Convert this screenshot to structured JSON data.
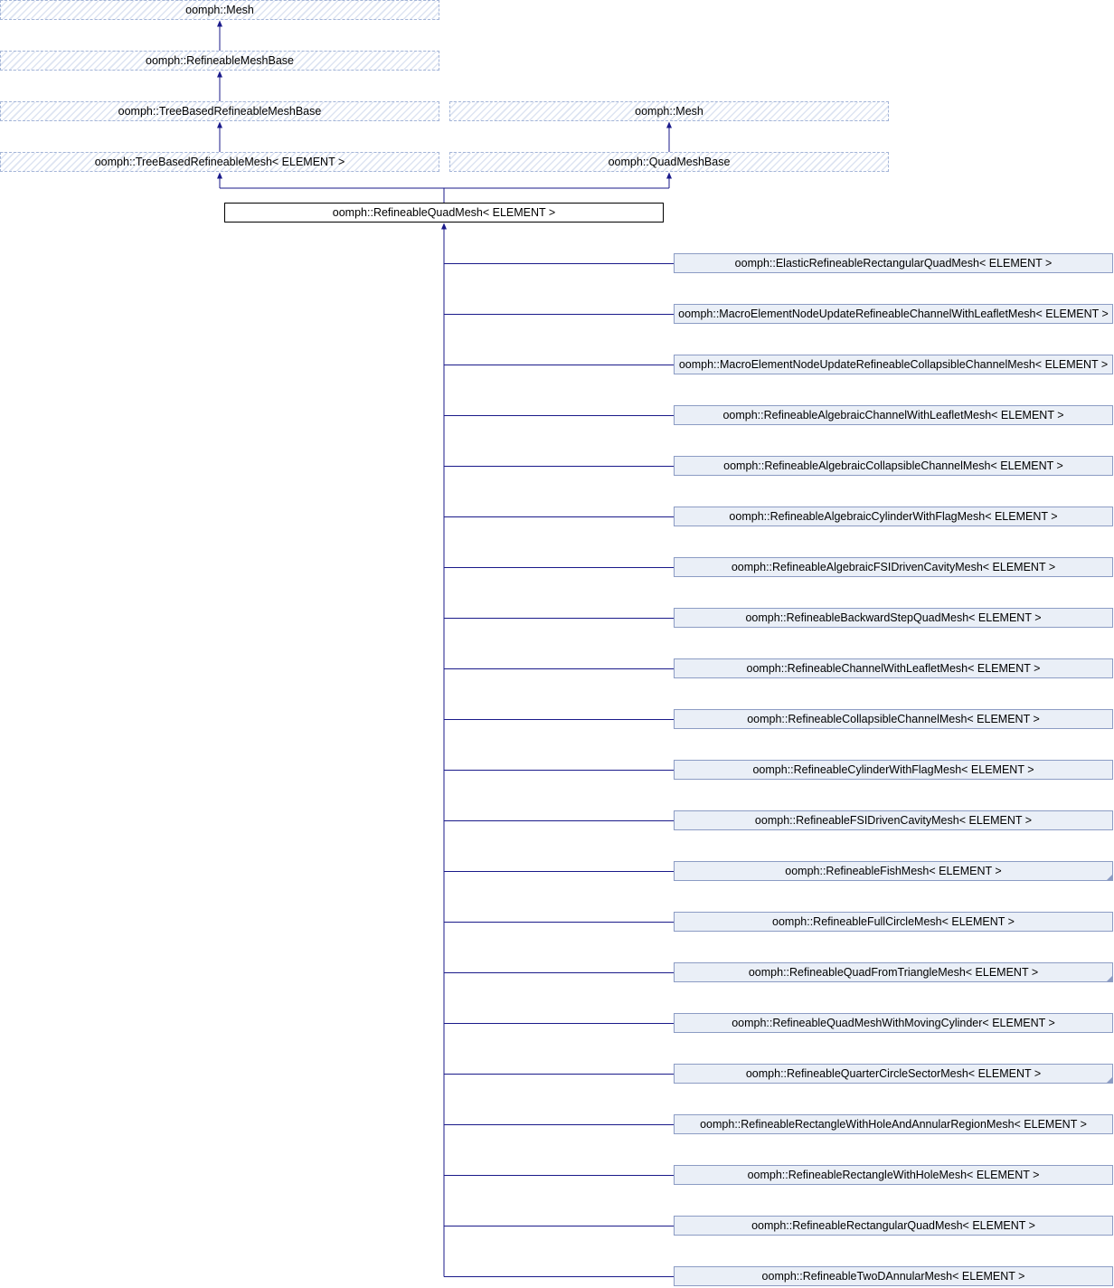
{
  "colors": {
    "edge": "#1a1a8a",
    "hidden_border": "#a3b4d7",
    "derived_border": "#8c9cc4",
    "derived_fill": "#eaeff7"
  },
  "bases": [
    {
      "id": "mesh",
      "label": "oomph::Mesh",
      "kind": "hidden"
    },
    {
      "id": "refineable-mesh-base",
      "label": "oomph::RefineableMeshBase",
      "kind": "hidden"
    },
    {
      "id": "tree-based-refineable-mesh-base",
      "label": "oomph::TreeBasedRefineableMeshBase",
      "kind": "hidden"
    },
    {
      "id": "mesh-2",
      "label": "oomph::Mesh",
      "kind": "hidden"
    },
    {
      "id": "tree-based-refineable-mesh",
      "label": "oomph::TreeBasedRefineableMesh< ELEMENT >",
      "kind": "hidden"
    },
    {
      "id": "quad-mesh-base",
      "label": "oomph::QuadMeshBase",
      "kind": "hidden"
    }
  ],
  "current": {
    "id": "refineable-quad-mesh",
    "label": "oomph::RefineableQuadMesh< ELEMENT >"
  },
  "derived": [
    {
      "label": "oomph::ElasticRefineableRectangularQuadMesh< ELEMENT >",
      "truncated": false
    },
    {
      "label": "oomph::MacroElementNodeUpdateRefineableChannelWithLeafletMesh< ELEMENT >",
      "truncated": false
    },
    {
      "label": "oomph::MacroElementNodeUpdateRefineableCollapsibleChannelMesh< ELEMENT >",
      "truncated": false
    },
    {
      "label": "oomph::RefineableAlgebraicChannelWithLeafletMesh< ELEMENT >",
      "truncated": false
    },
    {
      "label": "oomph::RefineableAlgebraicCollapsibleChannelMesh< ELEMENT >",
      "truncated": false
    },
    {
      "label": "oomph::RefineableAlgebraicCylinderWithFlagMesh< ELEMENT >",
      "truncated": false
    },
    {
      "label": "oomph::RefineableAlgebraicFSIDrivenCavityMesh< ELEMENT >",
      "truncated": false
    },
    {
      "label": "oomph::RefineableBackwardStepQuadMesh< ELEMENT >",
      "truncated": false
    },
    {
      "label": "oomph::RefineableChannelWithLeafletMesh< ELEMENT >",
      "truncated": false
    },
    {
      "label": "oomph::RefineableCollapsibleChannelMesh< ELEMENT >",
      "truncated": false
    },
    {
      "label": "oomph::RefineableCylinderWithFlagMesh< ELEMENT >",
      "truncated": false
    },
    {
      "label": "oomph::RefineableFSIDrivenCavityMesh< ELEMENT >",
      "truncated": false
    },
    {
      "label": "oomph::RefineableFishMesh< ELEMENT >",
      "truncated": true
    },
    {
      "label": "oomph::RefineableFullCircleMesh< ELEMENT >",
      "truncated": false
    },
    {
      "label": "oomph::RefineableQuadFromTriangleMesh< ELEMENT >",
      "truncated": true
    },
    {
      "label": "oomph::RefineableQuadMeshWithMovingCylinder< ELEMENT >",
      "truncated": false
    },
    {
      "label": "oomph::RefineableQuarterCircleSectorMesh< ELEMENT >",
      "truncated": true
    },
    {
      "label": "oomph::RefineableRectangleWithHoleAndAnnularRegionMesh< ELEMENT >",
      "truncated": false
    },
    {
      "label": "oomph::RefineableRectangleWithHoleMesh< ELEMENT >",
      "truncated": false
    },
    {
      "label": "oomph::RefineableRectangularQuadMesh< ELEMENT >",
      "truncated": false
    },
    {
      "label": "oomph::RefineableTwoDAnnularMesh< ELEMENT >",
      "truncated": false
    }
  ]
}
